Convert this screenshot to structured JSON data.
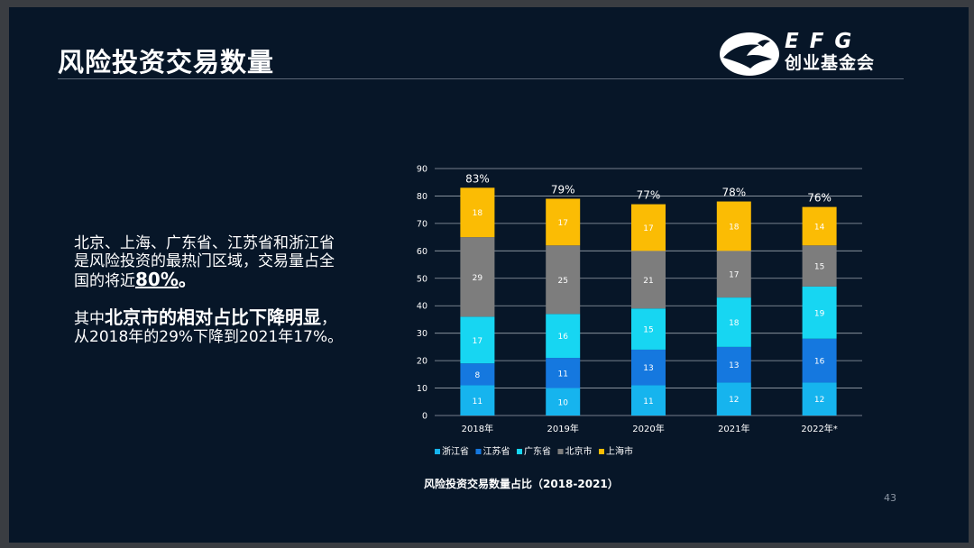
{
  "slide": {
    "title": "风险投资交易数量",
    "page_number": "43",
    "logo": {
      "mark": "eagle-logo-icon",
      "text_en": "EFG",
      "text_cn": "创业基金会"
    }
  },
  "text": {
    "p1_a": "北京、上海、广东省、江苏省和浙江省是风险投资的最热门区域，交易量占全国的将近",
    "p1_hl": "80%",
    "p1_b": "。",
    "p2_a": "其中",
    "p2_hl": "北京市的相对占比下降明显",
    "p2_b": "，从2018年的29%下降到2021年17%。"
  },
  "chart_data": {
    "type": "bar",
    "stacked": true,
    "title": "风险投资交易数量占比（2018-2021）",
    "categories": [
      "2018年",
      "2019年",
      "2020年",
      "2021年",
      "2022年*"
    ],
    "ylim": [
      0,
      90
    ],
    "yticks": [
      0,
      10,
      20,
      30,
      40,
      50,
      60,
      70,
      80,
      90
    ],
    "grid": true,
    "legend_position": "bottom",
    "series": [
      {
        "name": "浙江省",
        "color": "#16b4ee",
        "values": [
          11,
          10,
          11,
          12,
          12
        ]
      },
      {
        "name": "江苏省",
        "color": "#1578df",
        "values": [
          8,
          11,
          13,
          13,
          16
        ]
      },
      {
        "name": "广东省",
        "color": "#17d6f2",
        "values": [
          17,
          16,
          15,
          18,
          19
        ]
      },
      {
        "name": "北京市",
        "color": "#7d7d7d",
        "values": [
          29,
          25,
          21,
          17,
          15
        ]
      },
      {
        "name": "上海市",
        "color": "#fbbc04",
        "values": [
          18,
          17,
          17,
          18,
          14
        ]
      }
    ],
    "totals_labels": [
      "83%",
      "79%",
      "77%",
      "78%",
      "76%"
    ]
  }
}
